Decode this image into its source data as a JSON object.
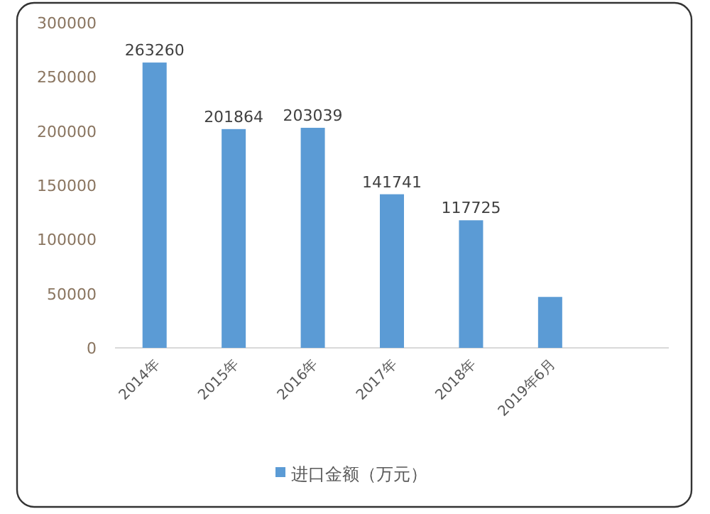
{
  "chart_data": {
    "type": "bar",
    "categories": [
      "2014年",
      "2015年",
      "2016年",
      "2017年",
      "2018年",
      "2019年6月",
      null
    ],
    "series": [
      {
        "name": "进口金额（万元）",
        "color": "#5b9bd5",
        "values": [
          263260,
          201864,
          203039,
          141741,
          117725,
          47000,
          null
        ],
        "value_labels": [
          "263260",
          "201864",
          "203039",
          "141741",
          "117725",
          null,
          null
        ]
      }
    ],
    "ylim": [
      0,
      300000
    ],
    "yticks": [
      0,
      50000,
      100000,
      150000,
      200000,
      250000,
      300000
    ],
    "grid": false,
    "legend": "bottom"
  }
}
